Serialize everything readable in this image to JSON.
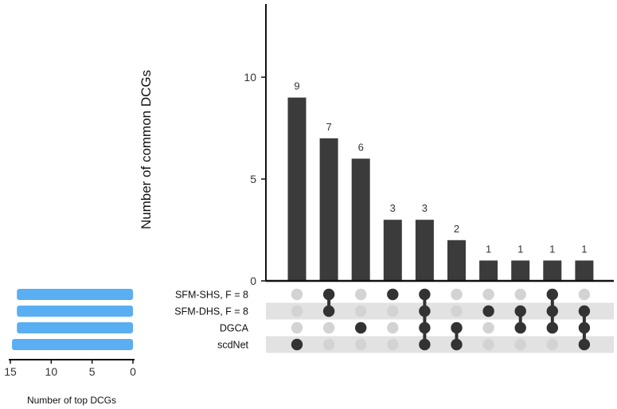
{
  "chart_data": {
    "type": "bar",
    "subtype": "upset",
    "ylabel": "Number of common DCGs",
    "ylim": [
      0,
      14
    ],
    "yticks": [
      0,
      5,
      10
    ],
    "values": [
      9,
      7,
      6,
      3,
      3,
      2,
      1,
      1,
      1,
      1
    ],
    "value_labels": [
      "9",
      "7",
      "6",
      "3",
      "3",
      "2",
      "1",
      "1",
      "1",
      "1"
    ],
    "sets": [
      "SFM-SHS, F = 8",
      "SFM-DHS, F = 8",
      "DGCA",
      "scdNet"
    ],
    "intersections": [
      [
        "scdNet"
      ],
      [
        "SFM-SHS, F = 8",
        "SFM-DHS, F = 8"
      ],
      [
        "DGCA"
      ],
      [
        "SFM-SHS, F = 8"
      ],
      [
        "SFM-SHS, F = 8",
        "SFM-DHS, F = 8",
        "DGCA",
        "scdNet"
      ],
      [
        "DGCA",
        "scdNet"
      ],
      [
        "SFM-DHS, F = 8"
      ],
      [
        "SFM-DHS, F = 8",
        "DGCA"
      ],
      [
        "SFM-SHS, F = 8",
        "SFM-DHS, F = 8",
        "DGCA"
      ],
      [
        "SFM-DHS, F = 8",
        "DGCA",
        "scdNet"
      ]
    ],
    "set_sizes": [
      14.2,
      14.2,
      14.2,
      14.8
    ],
    "set_size_label": "Number of top DCGs",
    "set_size_ticks": [
      15,
      10,
      5,
      0
    ],
    "set_size_tick_labels": [
      "15",
      "10",
      "5",
      "0"
    ],
    "set_size_max": 15,
    "colors": {
      "bar": "#3b3b3b",
      "dot_active": "#333333",
      "dot_inactive": "#d3d3d3",
      "stripe": "#e2e2e2",
      "set_bar": "#5aaef2",
      "axis": "#111111"
    }
  }
}
